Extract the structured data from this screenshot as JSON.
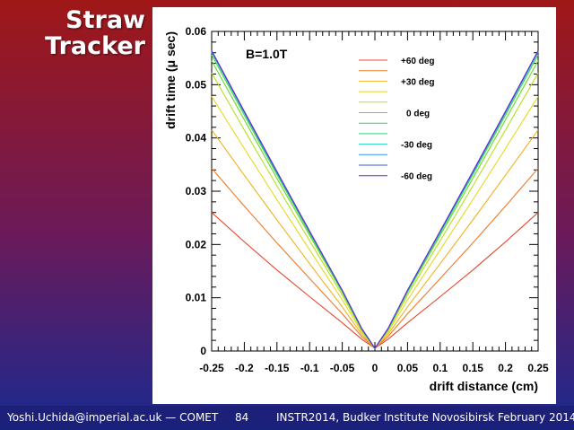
{
  "slide": {
    "title_line1": "Straw",
    "title_line2": "Tracker",
    "footer_left": "Yoshi.Uchida@imperial.ac.uk — COMET",
    "page_number": "84",
    "footer_right": "INSTR2014, Budker Institute Novosibirsk February 2014",
    "bg_top_color": "#a01818",
    "bg_bottom_color": "#1a2a90"
  },
  "chart_data": {
    "type": "line",
    "annotation": "B=1.0T",
    "xlabel": "drift distance (cm)",
    "ylabel": "drift time (μ sec)",
    "xlim": [
      -0.25,
      0.25
    ],
    "ylim": [
      0,
      0.06
    ],
    "xticks": [
      -0.25,
      -0.2,
      -0.15,
      -0.1,
      -0.05,
      0,
      0.05,
      0.1,
      0.15,
      0.2,
      0.25
    ],
    "xtick_labels": [
      "-0.25",
      "-0.2",
      "-0.15",
      "-0.1",
      "-0.05",
      "0",
      "0.05",
      "0.1",
      "0.15",
      "0.2",
      "0.25"
    ],
    "yticks": [
      0,
      0.01,
      0.02,
      0.03,
      0.04,
      0.05,
      0.06
    ],
    "ytick_labels": [
      "0",
      "0.01",
      "0.02",
      "0.03",
      "0.04",
      "0.05",
      "0.06"
    ],
    "legend_position": "top-right",
    "series": [
      {
        "name": "+60 deg",
        "color": "#e8452c",
        "x": [
          -0.25,
          -0.2,
          -0.15,
          -0.1,
          -0.05,
          -0.02,
          0,
          0.02,
          0.05,
          0.1,
          0.15,
          0.2,
          0.25
        ],
        "y": [
          0.026,
          0.0205,
          0.0152,
          0.0102,
          0.0053,
          0.0022,
          0.0005,
          0.0022,
          0.0053,
          0.0102,
          0.0152,
          0.0205,
          0.026
        ]
      },
      {
        "name": "",
        "color": "#f07a28",
        "x": [
          -0.25,
          -0.2,
          -0.15,
          -0.1,
          -0.05,
          -0.02,
          0,
          0.02,
          0.05,
          0.1,
          0.15,
          0.2,
          0.25
        ],
        "y": [
          0.0343,
          0.0272,
          0.0203,
          0.0136,
          0.007,
          0.0027,
          0.0005,
          0.0027,
          0.007,
          0.0136,
          0.0203,
          0.0272,
          0.0343
        ]
      },
      {
        "name": "+30 deg",
        "color": "#f2b21e",
        "x": [
          -0.25,
          -0.2,
          -0.15,
          -0.1,
          -0.05,
          -0.02,
          0,
          0.02,
          0.05,
          0.1,
          0.15,
          0.2,
          0.25
        ],
        "y": [
          0.0415,
          0.033,
          0.0246,
          0.0164,
          0.0083,
          0.0031,
          0.0005,
          0.0031,
          0.0083,
          0.0164,
          0.0246,
          0.033,
          0.0415
        ]
      },
      {
        "name": "",
        "color": "#e6d81c",
        "x": [
          -0.25,
          -0.2,
          -0.15,
          -0.1,
          -0.05,
          -0.02,
          0,
          0.02,
          0.05,
          0.1,
          0.15,
          0.2,
          0.25
        ],
        "y": [
          0.0478,
          0.038,
          0.0284,
          0.019,
          0.0096,
          0.0035,
          0.0005,
          0.0035,
          0.0096,
          0.019,
          0.0284,
          0.038,
          0.0478
        ]
      },
      {
        "name": "",
        "color": "#b4e01e",
        "x": [
          -0.25,
          -0.2,
          -0.15,
          -0.1,
          -0.05,
          -0.02,
          0,
          0.02,
          0.05,
          0.1,
          0.15,
          0.2,
          0.25
        ],
        "y": [
          0.0522,
          0.0415,
          0.031,
          0.0207,
          0.0105,
          0.0038,
          0.0005,
          0.0038,
          0.0105,
          0.0207,
          0.031,
          0.0415,
          0.0522
        ]
      },
      {
        "name": "0 deg",
        "color": "#6ed828",
        "x": [
          -0.25,
          -0.2,
          -0.15,
          -0.1,
          -0.05,
          -0.02,
          0,
          0.02,
          0.05,
          0.1,
          0.15,
          0.2,
          0.25
        ],
        "y": [
          0.0545,
          0.0434,
          0.0324,
          0.0217,
          0.011,
          0.004,
          0.0005,
          0.004,
          0.011,
          0.0217,
          0.0324,
          0.0434,
          0.0545
        ]
      },
      {
        "name": "",
        "color": "#3cd848",
        "x": [
          -0.25,
          -0.2,
          -0.15,
          -0.1,
          -0.05,
          -0.02,
          0,
          0.02,
          0.05,
          0.1,
          0.15,
          0.2,
          0.25
        ],
        "y": [
          0.0556,
          0.0443,
          0.0331,
          0.0221,
          0.0112,
          0.0041,
          0.0005,
          0.0041,
          0.0112,
          0.0221,
          0.0331,
          0.0443,
          0.0556
        ]
      },
      {
        "name": "",
        "color": "#28d87c",
        "x": [
          -0.25,
          -0.2,
          -0.15,
          -0.1,
          -0.05,
          -0.02,
          0,
          0.02,
          0.05,
          0.1,
          0.15,
          0.2,
          0.25
        ],
        "y": [
          0.0561,
          0.0447,
          0.0334,
          0.0223,
          0.0113,
          0.0041,
          0.0005,
          0.0041,
          0.0113,
          0.0223,
          0.0334,
          0.0447,
          0.0561
        ]
      },
      {
        "name": "-30 deg",
        "color": "#2ad0c0",
        "x": [
          -0.25,
          -0.2,
          -0.15,
          -0.1,
          -0.05,
          -0.02,
          0,
          0.02,
          0.05,
          0.1,
          0.15,
          0.2,
          0.25
        ],
        "y": [
          0.0562,
          0.0448,
          0.0335,
          0.0224,
          0.0113,
          0.0041,
          0.0005,
          0.0041,
          0.0113,
          0.0224,
          0.0335,
          0.0448,
          0.0562
        ]
      },
      {
        "name": "",
        "color": "#2a9ae8",
        "x": [
          -0.25,
          -0.2,
          -0.15,
          -0.1,
          -0.05,
          -0.02,
          0,
          0.02,
          0.05,
          0.1,
          0.15,
          0.2,
          0.25
        ],
        "y": [
          0.0563,
          0.0449,
          0.0336,
          0.0224,
          0.0114,
          0.0042,
          0.0005,
          0.0042,
          0.0114,
          0.0224,
          0.0336,
          0.0449,
          0.0563
        ]
      },
      {
        "name": "",
        "color": "#3a5ae8",
        "x": [
          -0.25,
          -0.2,
          -0.15,
          -0.1,
          -0.05,
          -0.02,
          0,
          0.02,
          0.05,
          0.1,
          0.15,
          0.2,
          0.25
        ],
        "y": [
          0.0563,
          0.0449,
          0.0336,
          0.0225,
          0.0114,
          0.0042,
          0.0005,
          0.0042,
          0.0114,
          0.0225,
          0.0336,
          0.0449,
          0.0563
        ]
      },
      {
        "name": "-60 deg",
        "color": "#6a2ad8",
        "x": [
          -0.25,
          -0.2,
          -0.15,
          -0.1,
          -0.05,
          -0.02,
          0,
          0.02,
          0.05,
          0.1,
          0.15,
          0.2,
          0.25
        ],
        "y": [
          0.0564,
          0.045,
          0.0337,
          0.0225,
          0.0114,
          0.0042,
          0.0005,
          0.0042,
          0.0114,
          0.0225,
          0.0337,
          0.045,
          0.0564
        ]
      }
    ]
  }
}
